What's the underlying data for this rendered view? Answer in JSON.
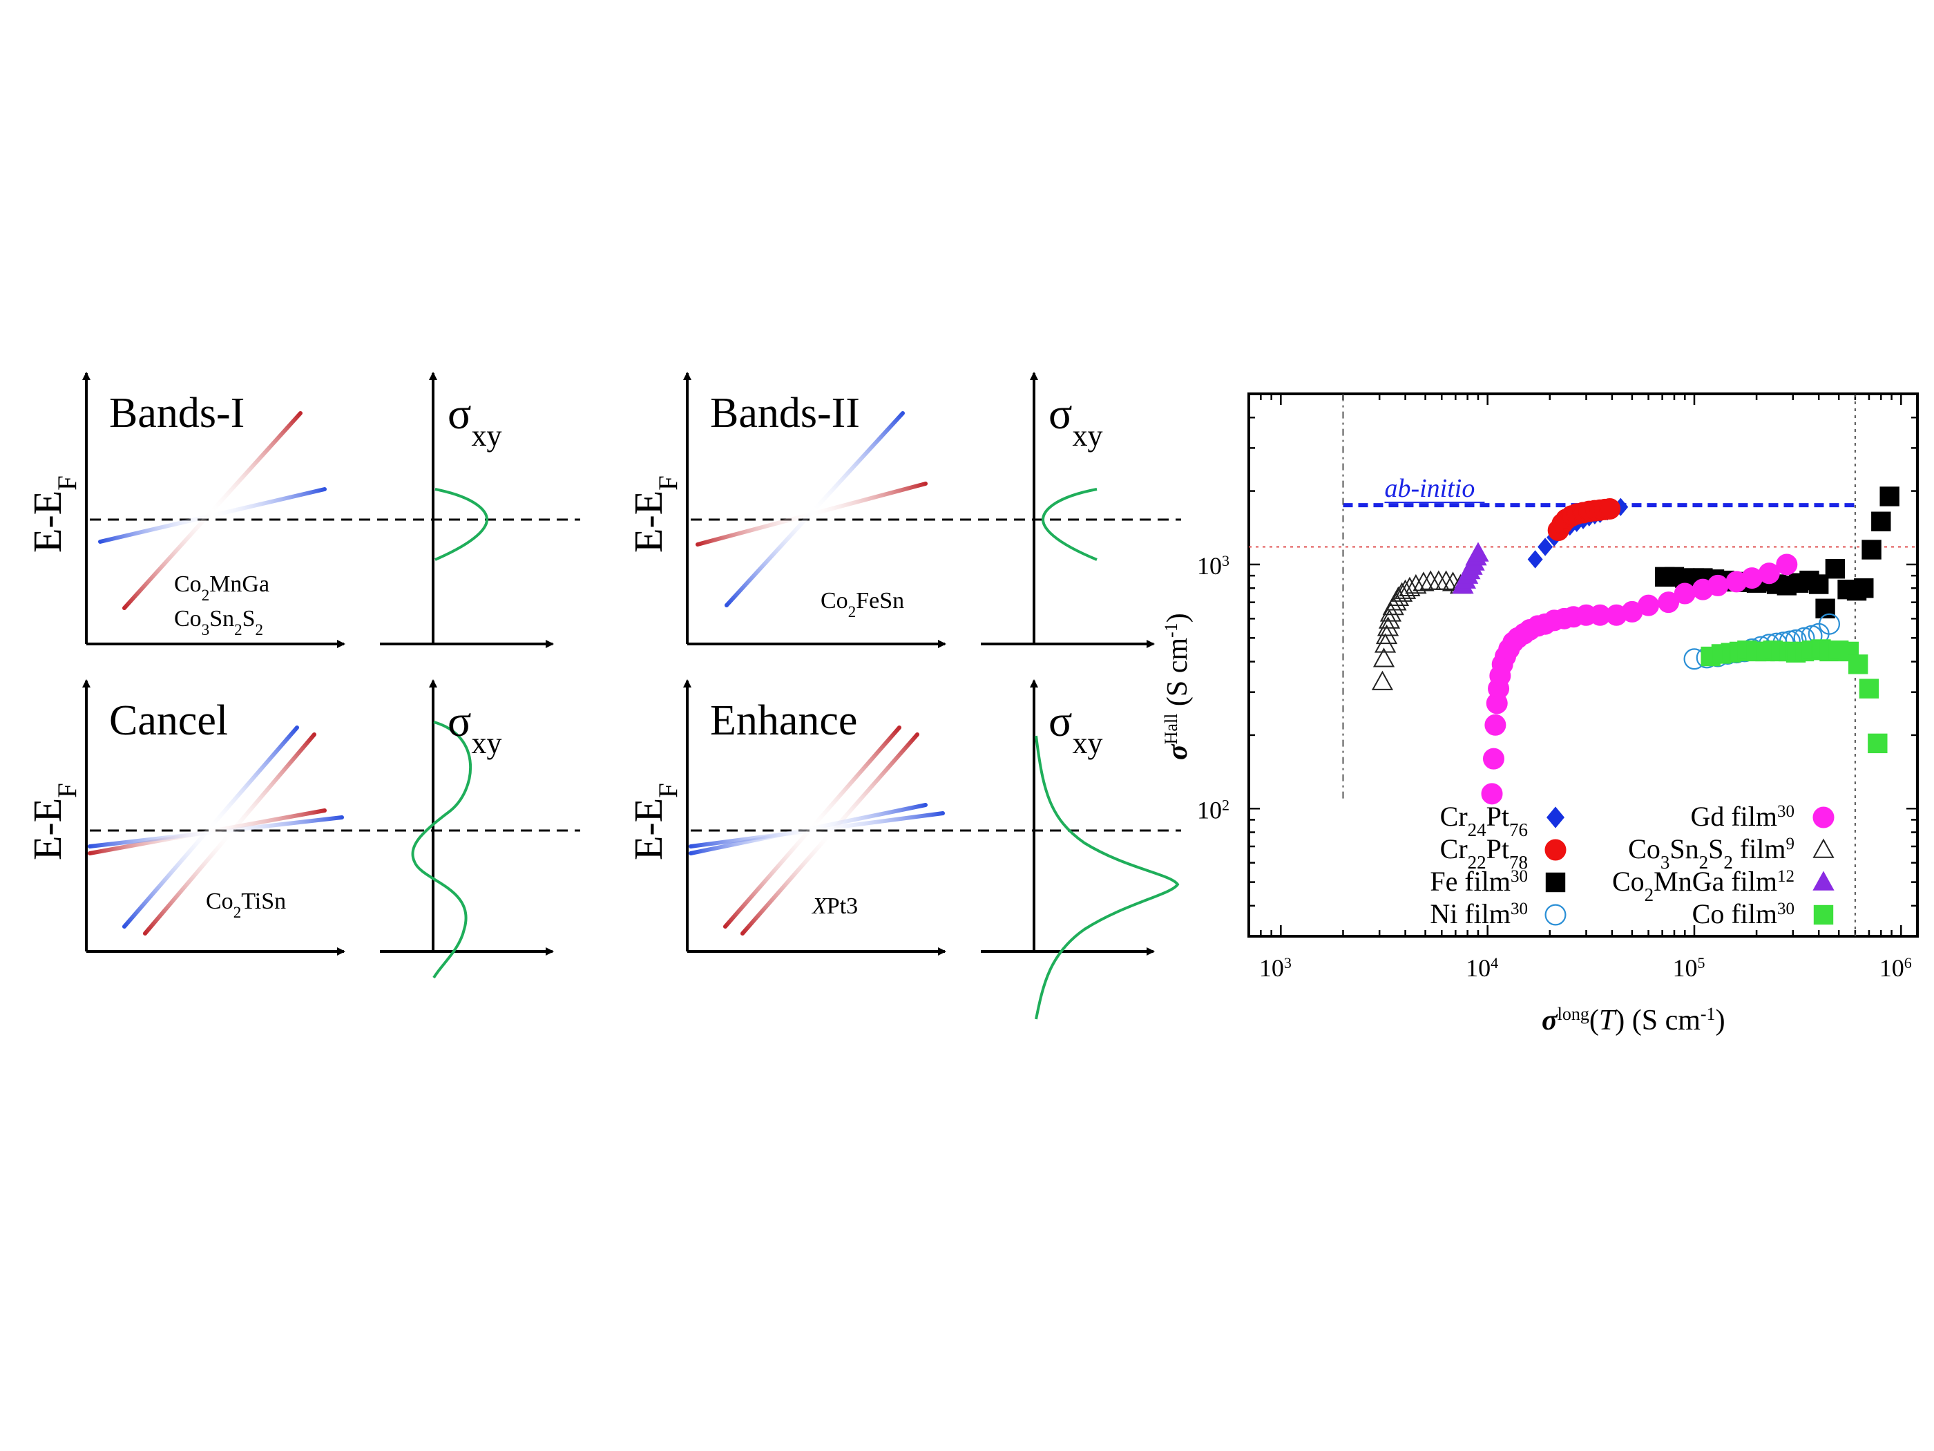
{
  "colors": {
    "red_band": "#c0272d",
    "blue_band": "#2f52e0",
    "sigma_curve": "#1fae5a",
    "axis": "#000000"
  },
  "schematics": [
    {
      "id": "bands-i",
      "title": "Bands-I",
      "ylabel_main": "E-E",
      "ylabel_sub": "F",
      "sigma_main": "σ",
      "sigma_sub": "xy",
      "compounds": [
        {
          "parts": [
            [
              "Co",
              ""
            ],
            [
              "2",
              "sub"
            ],
            [
              "MnGa",
              ""
            ]
          ]
        },
        {
          "parts": [
            [
              "Co",
              ""
            ],
            [
              "3",
              "sub"
            ],
            [
              "Sn",
              ""
            ],
            [
              "2",
              "sub"
            ],
            [
              "S",
              ""
            ],
            [
              "2",
              "sub"
            ]
          ]
        }
      ]
    },
    {
      "id": "bands-ii",
      "title": "Bands-II",
      "ylabel_main": "E-E",
      "ylabel_sub": "F",
      "sigma_main": "σ",
      "sigma_sub": "xy",
      "compounds": [
        {
          "parts": [
            [
              "Co",
              ""
            ],
            [
              "2",
              "sub"
            ],
            [
              "FeSn",
              ""
            ]
          ]
        }
      ]
    },
    {
      "id": "cancel",
      "title": "Cancel",
      "ylabel_main": "E-E",
      "ylabel_sub": "F",
      "sigma_main": "σ",
      "sigma_sub": "xy",
      "compounds": [
        {
          "parts": [
            [
              "Co",
              ""
            ],
            [
              "2",
              "sub"
            ],
            [
              "TiSn",
              ""
            ]
          ]
        }
      ]
    },
    {
      "id": "enhance",
      "title": "Enhance",
      "ylabel_main": "E-E",
      "ylabel_sub": "F",
      "sigma_main": "σ",
      "sigma_sub": "xy",
      "compounds": [
        {
          "parts": [
            [
              "X",
              "ital"
            ],
            [
              "Pt3",
              ""
            ]
          ]
        }
      ]
    }
  ],
  "chart_data": {
    "type": "scatter",
    "xscale": "log",
    "yscale": "log",
    "xlim": [
      700,
      1200000
    ],
    "ylim": [
      30,
      5000
    ],
    "xticks": [
      {
        "mant": "10",
        "exp": "3",
        "value": 1000
      },
      {
        "mant": "10",
        "exp": "4",
        "value": 10000
      },
      {
        "mant": "10",
        "exp": "5",
        "value": 100000
      },
      {
        "mant": "10",
        "exp": "6",
        "value": 1000000
      }
    ],
    "yticks": [
      {
        "mant": "10",
        "exp": "2",
        "value": 100
      },
      {
        "mant": "10",
        "exp": "3",
        "value": 1000
      }
    ],
    "xlabel": {
      "sym": "σ",
      "sup": "long",
      "rest": "(T) (S cm",
      "sup2": "-1",
      "close": ")"
    },
    "ylabel": {
      "sym": "σ",
      "sup": "Hall",
      "rest": " (S cm",
      "sup2": "-1",
      "close": ")"
    },
    "reference_lines": [
      {
        "kind": "hline",
        "y": 1750,
        "color": "#1a24e6",
        "style": "dashed-thick",
        "label": "ab-initio"
      },
      {
        "kind": "hline",
        "y": 1180,
        "color": "#e05050",
        "style": "dotted"
      },
      {
        "kind": "vline",
        "x": 2000,
        "y_from": 110,
        "y_to": 5000,
        "color": "#555555",
        "style": "dashdot"
      },
      {
        "kind": "vline",
        "x": 600000,
        "y_from": 30,
        "y_to": 5000,
        "color": "#555555",
        "style": "dotted"
      }
    ],
    "series": [
      {
        "name": "Cr24Pt76",
        "label": [
          [
            "Cr",
            ""
          ],
          [
            "24",
            "sub"
          ],
          [
            "Pt",
            ""
          ],
          [
            "76",
            "sub"
          ]
        ],
        "marker": "diamond",
        "color": "#1530e0",
        "filled": true,
        "x": [
          17000,
          19000,
          21000,
          23000,
          25000,
          27000,
          29000,
          31000,
          33000,
          35000,
          38000,
          41000,
          44000
        ],
        "y": [
          1050,
          1180,
          1290,
          1370,
          1430,
          1480,
          1520,
          1560,
          1590,
          1610,
          1650,
          1680,
          1720
        ]
      },
      {
        "name": "Cr22Pt78",
        "label": [
          [
            "Cr",
            ""
          ],
          [
            "22",
            "sub"
          ],
          [
            "Pt",
            ""
          ],
          [
            "78",
            "sub"
          ]
        ],
        "marker": "circle",
        "color": "#ee1111",
        "filled": true,
        "x": [
          22000,
          23000,
          24000,
          25500,
          27000,
          29000,
          31000,
          33000,
          35000,
          37000,
          39000
        ],
        "y": [
          1380,
          1470,
          1530,
          1580,
          1610,
          1630,
          1650,
          1660,
          1670,
          1680,
          1690
        ]
      },
      {
        "name": "Fe film",
        "label": [
          [
            "Fe film",
            ""
          ],
          [
            "30",
            "sup"
          ]
        ],
        "marker": "square",
        "color": "#000000",
        "filled": true,
        "x": [
          72000,
          80000,
          90000,
          100000,
          110000,
          125000,
          140000,
          160000,
          180000,
          200000,
          225000,
          250000,
          280000,
          320000,
          360000,
          400000,
          430000,
          480000,
          550000,
          610000,
          660000,
          720000,
          800000,
          880000
        ],
        "y": [
          890,
          890,
          880,
          880,
          880,
          870,
          860,
          850,
          845,
          840,
          850,
          830,
          820,
          840,
          860,
          830,
          660,
          960,
          790,
          780,
          800,
          1150,
          1500,
          1900
        ]
      },
      {
        "name": "Ni film",
        "label": [
          [
            "Ni film",
            ""
          ],
          [
            "30",
            "sup"
          ]
        ],
        "marker": "circle",
        "color": "#2a8fd6",
        "filled": false,
        "x": [
          100000,
          115000,
          130000,
          145000,
          160000,
          175000,
          190000,
          210000,
          230000,
          250000,
          270000,
          290000,
          310000,
          340000,
          370000,
          400000,
          450000
        ],
        "y": [
          410,
          415,
          420,
          430,
          435,
          440,
          450,
          460,
          470,
          475,
          480,
          485,
          490,
          500,
          510,
          520,
          570
        ]
      },
      {
        "name": "Gd film",
        "label": [
          [
            "Gd film",
            ""
          ],
          [
            "30",
            "sup"
          ]
        ],
        "marker": "circle",
        "color": "#ff22ee",
        "filled": true,
        "x": [
          10500,
          10700,
          10900,
          11100,
          11300,
          11500,
          11800,
          12200,
          12700,
          13300,
          14000,
          15000,
          16000,
          17500,
          19000,
          21000,
          23500,
          26000,
          30000,
          35000,
          42000,
          50000,
          60000,
          75000,
          90000,
          110000,
          130000,
          160000,
          190000,
          230000,
          280000
        ],
        "y": [
          115,
          160,
          220,
          270,
          310,
          350,
          390,
          420,
          450,
          480,
          500,
          520,
          540,
          560,
          570,
          590,
          600,
          610,
          620,
          620,
          620,
          640,
          680,
          700,
          760,
          790,
          820,
          850,
          880,
          920,
          1000
        ]
      },
      {
        "name": "Co3Sn2S2 film",
        "label": [
          [
            "Co",
            ""
          ],
          [
            "3",
            "sub"
          ],
          [
            "Sn",
            ""
          ],
          [
            "2",
            "sub"
          ],
          [
            "S",
            ""
          ],
          [
            "2",
            "sub"
          ],
          [
            " film",
            ""
          ],
          [
            "9",
            "sup"
          ]
        ],
        "marker": "triangle",
        "color": "#222222",
        "filled": false,
        "x": [
          3100,
          3150,
          3200,
          3250,
          3300,
          3350,
          3400,
          3500,
          3600,
          3700,
          3850,
          4000,
          4200,
          4500,
          4900,
          5300,
          5800,
          6300,
          6800,
          7400
        ],
        "y": [
          330,
          410,
          470,
          510,
          550,
          590,
          630,
          670,
          700,
          730,
          760,
          780,
          800,
          820,
          840,
          850,
          850,
          850,
          840,
          820
        ]
      },
      {
        "name": "Co2MnGa film",
        "label": [
          [
            "Co",
            ""
          ],
          [
            "2",
            "sub"
          ],
          [
            "MnGa film",
            ""
          ],
          [
            "12",
            "sup"
          ]
        ],
        "marker": "triangle",
        "color": "#8a2be2",
        "filled": true,
        "x": [
          7600,
          7800,
          8000,
          8200,
          8400,
          8600,
          8800,
          9000
        ],
        "y": [
          820,
          860,
          900,
          940,
          980,
          1020,
          1070,
          1110
        ]
      },
      {
        "name": "Co film",
        "label": [
          [
            "Co film",
            ""
          ],
          [
            "30",
            "sup"
          ]
        ],
        "marker": "square",
        "color": "#3de03d",
        "filled": true,
        "x": [
          120000,
          135000,
          150000,
          165000,
          180000,
          200000,
          220000,
          240000,
          260000,
          285000,
          310000,
          340000,
          370000,
          410000,
          450000,
          500000,
          560000,
          620000,
          700000,
          770000
        ],
        "y": [
          420,
          430,
          435,
          440,
          445,
          440,
          440,
          445,
          440,
          440,
          435,
          440,
          445,
          450,
          440,
          445,
          440,
          390,
          310,
          185
        ]
      }
    ]
  }
}
